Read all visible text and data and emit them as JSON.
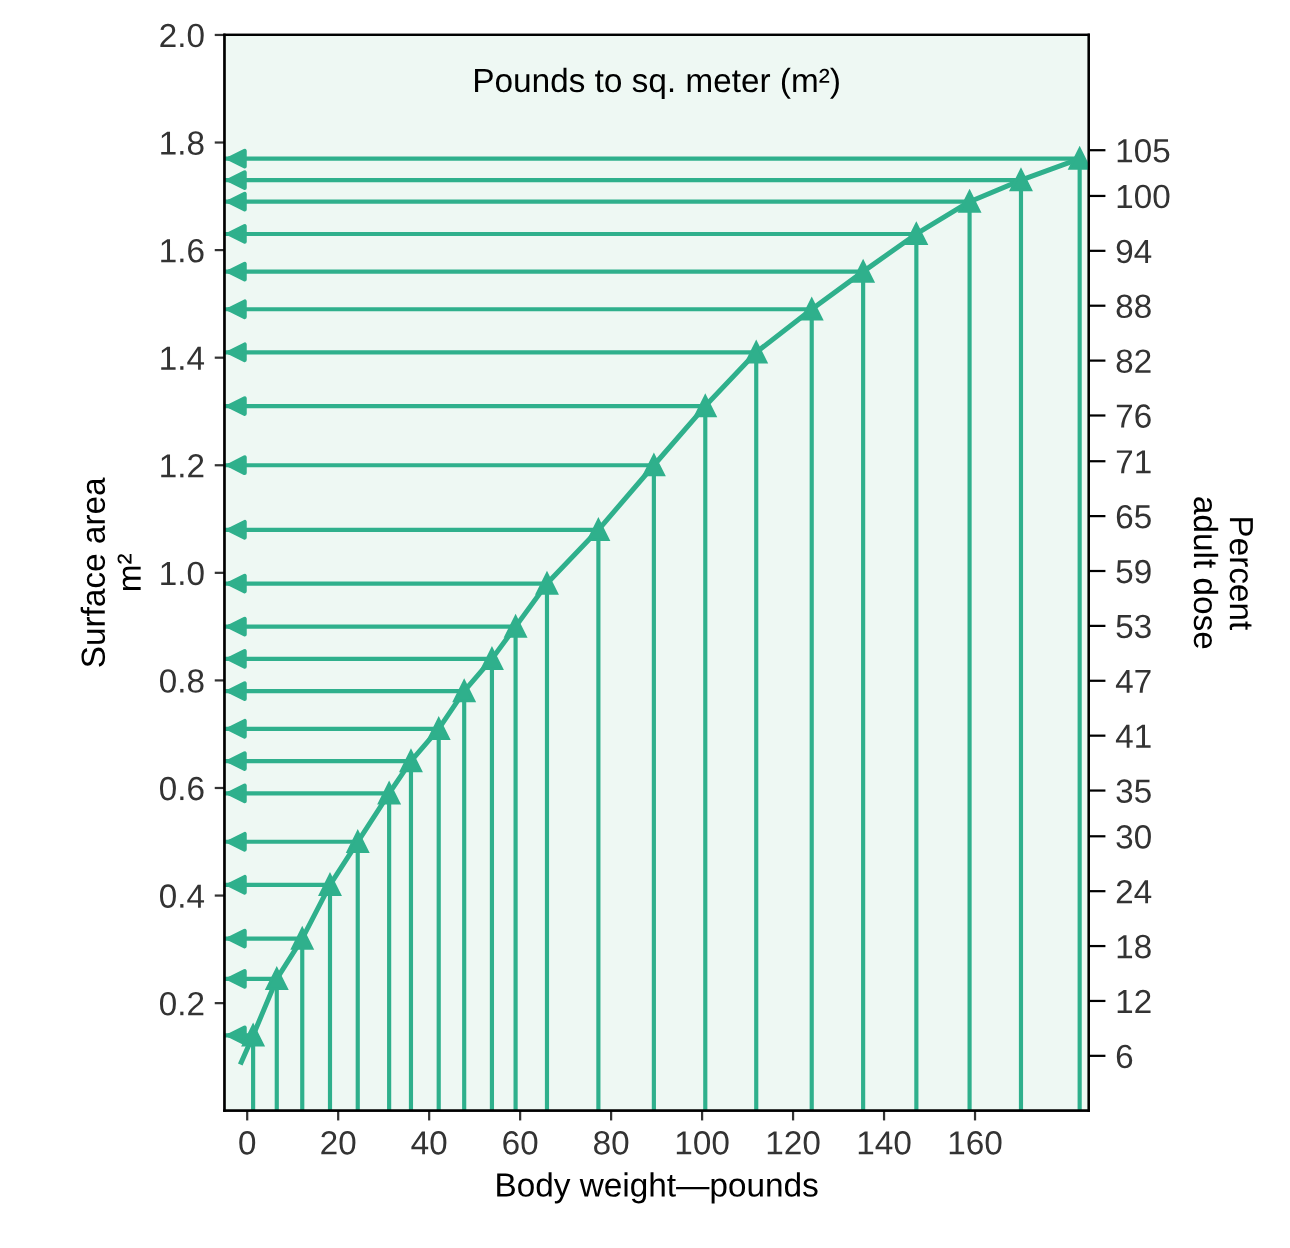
{
  "chart_data": {
    "type": "line",
    "title": "Pounds to sq. meter (m²)",
    "xlabel": "Body weight—pounds",
    "ylabel": "Surface area\nm²",
    "y2label": "Percent\nadult dose",
    "xlim": [
      -5,
      185
    ],
    "xticks": [
      0,
      20,
      40,
      60,
      80,
      100,
      120,
      140,
      160
    ],
    "ylim": [
      0,
      2.0
    ],
    "yticks": [
      0.2,
      0.4,
      0.6,
      0.8,
      {
        "value": 1,
        "label": "1.0"
      },
      1.2,
      1.4,
      1.6,
      1.8,
      {
        "value": 2,
        "label": "2.0"
      }
    ],
    "y2lim": [
      0,
      117.6
    ],
    "y2ticks": [
      6,
      12,
      18,
      24,
      30,
      35,
      41,
      47,
      53,
      59,
      65,
      71,
      76,
      82,
      88,
      94,
      100,
      105
    ],
    "grid": false,
    "legend": false,
    "line_style": "solid",
    "series": [
      {
        "color": "#2fb08c",
        "x": [
          -1.3,
          1.3,
          6.5,
          12.1,
          18.2,
          24.3,
          31.2,
          36.0,
          42.1,
          47.7,
          53.8,
          59.0,
          65.9,
          77.2,
          89.4,
          100.7,
          111.9,
          124.1,
          135.4,
          147.1,
          158.8,
          170.1,
          183
        ],
        "values": [
          0.09,
          0.14,
          0.245,
          0.32,
          0.42,
          0.5,
          0.59,
          0.65,
          0.71,
          0.78,
          0.84,
          0.9,
          0.98,
          1.08,
          1.2,
          1.31,
          1.41,
          1.49,
          1.56,
          1.63,
          1.69,
          1.73,
          1.77
        ]
      },
      {
        "type": "lollipop",
        "marker": "triangle",
        "color": "#2fb08c",
        "x": [
          1.3,
          6.5,
          12.1,
          18.2,
          24.3,
          31.2,
          36.0,
          42.1,
          47.7,
          53.8,
          59.0,
          65.9,
          77.2,
          89.4,
          100.7,
          111.9,
          124.1,
          135.4,
          147.1,
          158.8,
          170.1,
          183
        ],
        "values": [
          0.14,
          0.245,
          0.32,
          0.42,
          0.5,
          0.59,
          0.65,
          0.71,
          0.78,
          0.84,
          0.9,
          0.98,
          1.08,
          1.2,
          1.31,
          1.41,
          1.49,
          1.56,
          1.63,
          1.69,
          1.73,
          1.77
        ],
        "xerrors": [
          [
            -5,
            1.3
          ],
          [
            -5,
            6.5
          ],
          [
            -5,
            12.1
          ],
          [
            -5,
            18.2
          ],
          [
            -5,
            24.3
          ],
          [
            -5,
            31.2
          ],
          [
            -5,
            36.0
          ],
          [
            -5,
            42.1
          ],
          [
            -5,
            47.7
          ],
          [
            -5,
            53.8
          ],
          [
            -5,
            59.0
          ],
          [
            -5,
            65.9
          ],
          [
            -5,
            77.2
          ],
          [
            -5,
            89.4
          ],
          [
            -5,
            100.7
          ],
          [
            -5,
            111.9
          ],
          [
            -5,
            124.1
          ],
          [
            -5,
            135.4
          ],
          [
            -5,
            147.1
          ],
          [
            -5,
            158.8
          ],
          [
            -5,
            170.1
          ],
          [
            -5,
            183
          ]
        ]
      }
    ]
  }
}
